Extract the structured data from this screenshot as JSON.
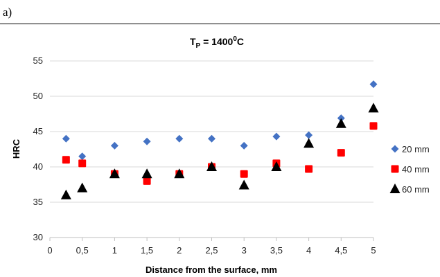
{
  "panel_label": "a)",
  "chart_data": {
    "type": "scatter",
    "title_main": "T",
    "title_sub": "P",
    "title_rest": " = 1400",
    "title_sup": "0",
    "title_end": "C",
    "xlabel": "Distance from the surface, mm",
    "ylabel": "HRC",
    "xlim": [
      0,
      5
    ],
    "ylim": [
      30,
      55
    ],
    "xticks": [
      0,
      0.5,
      1,
      1.5,
      2,
      2.5,
      3,
      3.5,
      4,
      4.5,
      5
    ],
    "xtick_labels": [
      "0",
      "0,5",
      "1",
      "1,5",
      "2",
      "2,5",
      "3",
      "3,5",
      "4",
      "4,5",
      "5"
    ],
    "yticks": [
      30,
      35,
      40,
      45,
      50,
      55
    ],
    "ytick_labels": [
      "30",
      "35",
      "40",
      "45",
      "50",
      "55"
    ],
    "grid": "horizontal",
    "legend_position": "right",
    "series": [
      {
        "name": "20 mm",
        "marker": "diamond",
        "color": "#4472c4",
        "x": [
          0.25,
          0.5,
          1,
          1.5,
          2,
          2.5,
          3,
          3.5,
          4,
          4.5,
          5
        ],
        "y": [
          44,
          41.5,
          43,
          43.6,
          44,
          44,
          43,
          44.3,
          44.5,
          46.9,
          51.7
        ]
      },
      {
        "name": "40 mm",
        "marker": "square",
        "color": "#ff0000",
        "x": [
          0.25,
          0.5,
          1,
          1.5,
          2,
          2.5,
          3,
          3.5,
          4,
          4.5,
          5
        ],
        "y": [
          41,
          40.5,
          39,
          38,
          39,
          40,
          39,
          40.5,
          39.7,
          42,
          45.8
        ]
      },
      {
        "name": "60 mm",
        "marker": "triangle",
        "color": "#000000",
        "x": [
          0.25,
          0.5,
          1,
          1.5,
          2,
          2.5,
          3,
          3.5,
          4,
          4.5,
          5
        ],
        "y": [
          36,
          37,
          39,
          39,
          39,
          40,
          37.4,
          40,
          43.3,
          46.1,
          48.3
        ]
      }
    ]
  }
}
